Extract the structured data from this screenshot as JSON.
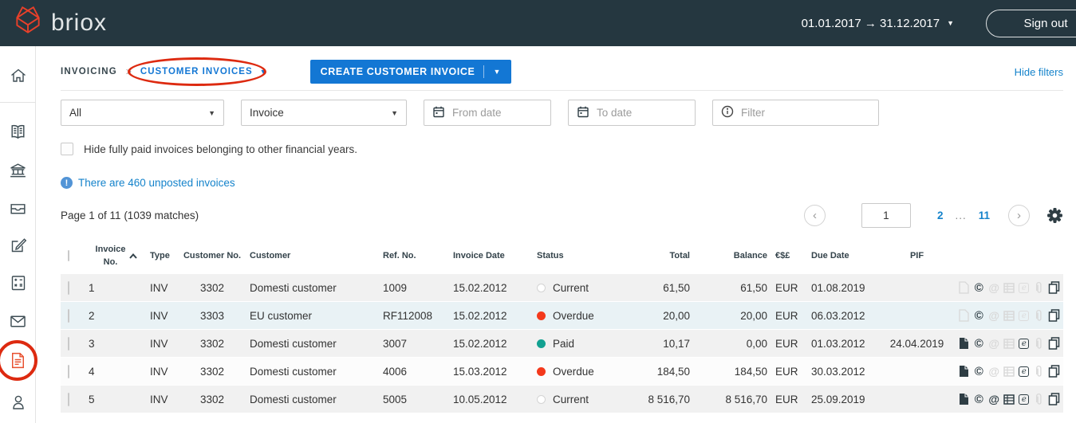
{
  "header": {
    "brand": "briox",
    "date_range": "01.01.2017 → 31.12.2017",
    "sign_out": "Sign out"
  },
  "sidebar": {
    "icons": [
      "home",
      "book",
      "bank",
      "inbox",
      "compose",
      "calculator",
      "mail",
      "invoices",
      "contacts"
    ],
    "active_icon": "invoices"
  },
  "nav": {
    "breadcrumb_section": "INVOICING",
    "breadcrumb_separator": ">",
    "breadcrumb_current": "CUSTOMER INVOICES",
    "create_button": "CREATE CUSTOMER INVOICE",
    "hide_filters": "Hide filters"
  },
  "filters": {
    "type_select_value": "All",
    "doc_select_value": "Invoice",
    "from_date_placeholder": "From date",
    "to_date_placeholder": "To date",
    "filter_placeholder": "Filter",
    "hide_paid_label": "Hide fully paid invoices belonging to other financial years.",
    "hide_paid_checked": false
  },
  "notice": {
    "unposted": "There are 460 unposted invoices",
    "badge": "!"
  },
  "pagination": {
    "summary": "Page 1 of 11  (1039 matches)",
    "prev": "‹",
    "next": "›",
    "current": "1",
    "pages": [
      "2",
      "...",
      "11"
    ]
  },
  "table": {
    "headers": {
      "invoice_no_line1": "Invoice",
      "invoice_no_line2": "No.",
      "type": "Type",
      "customer_no": "Customer No.",
      "customer": "Customer",
      "ref_no": "Ref. No.",
      "invoice_date": "Invoice Date",
      "status": "Status",
      "total": "Total",
      "balance": "Balance",
      "currency": "€$£",
      "due_date": "Due Date",
      "pif": "PIF"
    },
    "rows": [
      {
        "invoice_no": "1",
        "type": "INV",
        "customer_no": "3302",
        "customer": "Domesti customer",
        "ref_no": "1009",
        "invoice_date": "15.02.2012",
        "status": "Current",
        "status_kind": "current",
        "total": "61,50",
        "balance": "61,50",
        "currency": "EUR",
        "due_date": "01.08.2019",
        "pif": "",
        "highlight": false,
        "actions": {
          "document": false,
          "copyright": true,
          "email": false,
          "grid": false,
          "einvoice": false,
          "attachment": false,
          "copy": true
        }
      },
      {
        "invoice_no": "2",
        "type": "INV",
        "customer_no": "3303",
        "customer": "EU customer",
        "ref_no": "RF112008",
        "invoice_date": "15.02.2012",
        "status": "Overdue",
        "status_kind": "overdue",
        "total": "20,00",
        "balance": "20,00",
        "currency": "EUR",
        "due_date": "06.03.2012",
        "pif": "",
        "highlight": true,
        "actions": {
          "document": false,
          "copyright": true,
          "email": false,
          "grid": false,
          "einvoice": false,
          "attachment": false,
          "copy": true
        }
      },
      {
        "invoice_no": "3",
        "type": "INV",
        "customer_no": "3302",
        "customer": "Domesti customer",
        "ref_no": "3007",
        "invoice_date": "15.02.2012",
        "status": "Paid",
        "status_kind": "paid",
        "total": "10,17",
        "balance": "0,00",
        "currency": "EUR",
        "due_date": "01.03.2012",
        "pif": "24.04.2019",
        "highlight": false,
        "actions": {
          "document": true,
          "copyright": true,
          "email": false,
          "grid": false,
          "einvoice": true,
          "attachment": false,
          "copy": true
        }
      },
      {
        "invoice_no": "4",
        "type": "INV",
        "customer_no": "3302",
        "customer": "Domesti customer",
        "ref_no": "4006",
        "invoice_date": "15.03.2012",
        "status": "Overdue",
        "status_kind": "overdue",
        "total": "184,50",
        "balance": "184,50",
        "currency": "EUR",
        "due_date": "30.03.2012",
        "pif": "",
        "highlight": false,
        "actions": {
          "document": true,
          "copyright": true,
          "email": false,
          "grid": false,
          "einvoice": true,
          "attachment": false,
          "copy": true
        }
      },
      {
        "invoice_no": "5",
        "type": "INV",
        "customer_no": "3302",
        "customer": "Domesti customer",
        "ref_no": "5005",
        "invoice_date": "10.05.2012",
        "status": "Current",
        "status_kind": "current",
        "total": "8 516,70",
        "balance": "8 516,70",
        "currency": "EUR",
        "due_date": "25.09.2019",
        "pif": "",
        "highlight": false,
        "actions": {
          "document": true,
          "copyright": true,
          "email": true,
          "grid": true,
          "einvoice": true,
          "attachment": false,
          "copy": true
        }
      }
    ]
  },
  "colors": {
    "topbar": "#253740",
    "accent_blue": "#1377d4",
    "link_blue": "#1583cb",
    "brand_orange": "#e8402a",
    "active_icon_orange": "#e8502f",
    "overdue_red": "#f4391c",
    "paid_teal": "#12a191",
    "annotation_red": "#dd2a10",
    "icon_on": "#2e3d44",
    "icon_off": "#d8d8d8"
  }
}
